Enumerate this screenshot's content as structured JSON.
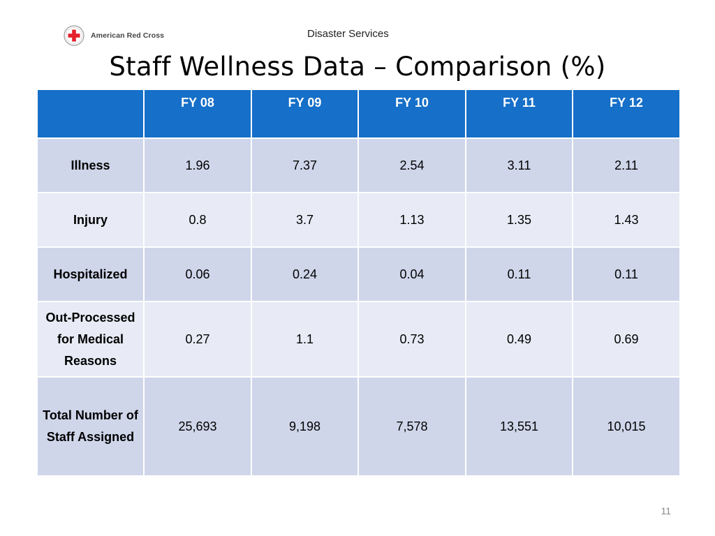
{
  "header": {
    "logo_text": "American Red Cross",
    "department": "Disaster Services"
  },
  "title": "Staff Wellness Data – Comparison (%)",
  "table": {
    "corner": "",
    "columns": [
      "FY 08",
      "FY 09",
      "FY 10",
      "FY 11",
      "FY 12"
    ],
    "rows": [
      {
        "label": "Illness",
        "values": [
          "1.96",
          "7.37",
          "2.54",
          "3.11",
          "2.11"
        ]
      },
      {
        "label": "Injury",
        "values": [
          "0.8",
          "3.7",
          "1.13",
          "1.35",
          "1.43"
        ]
      },
      {
        "label": "Hospitalized",
        "values": [
          "0.06",
          "0.24",
          "0.04",
          "0.11",
          "0.11"
        ]
      },
      {
        "label": "Out-Processed for Medical Reasons",
        "values": [
          "0.27",
          "1.1",
          "0.73",
          "0.49",
          "0.69"
        ]
      },
      {
        "label": "Total Number of Staff Assigned",
        "values": [
          "25,693",
          "9,198",
          "7,578",
          "13,551",
          "10,015"
        ]
      }
    ]
  },
  "page_number": "11",
  "colors": {
    "header_fill": "#166fc8",
    "row_dark": "#cfd6ea",
    "row_light": "#e8ebf5",
    "logo_red": "#e4202a"
  }
}
